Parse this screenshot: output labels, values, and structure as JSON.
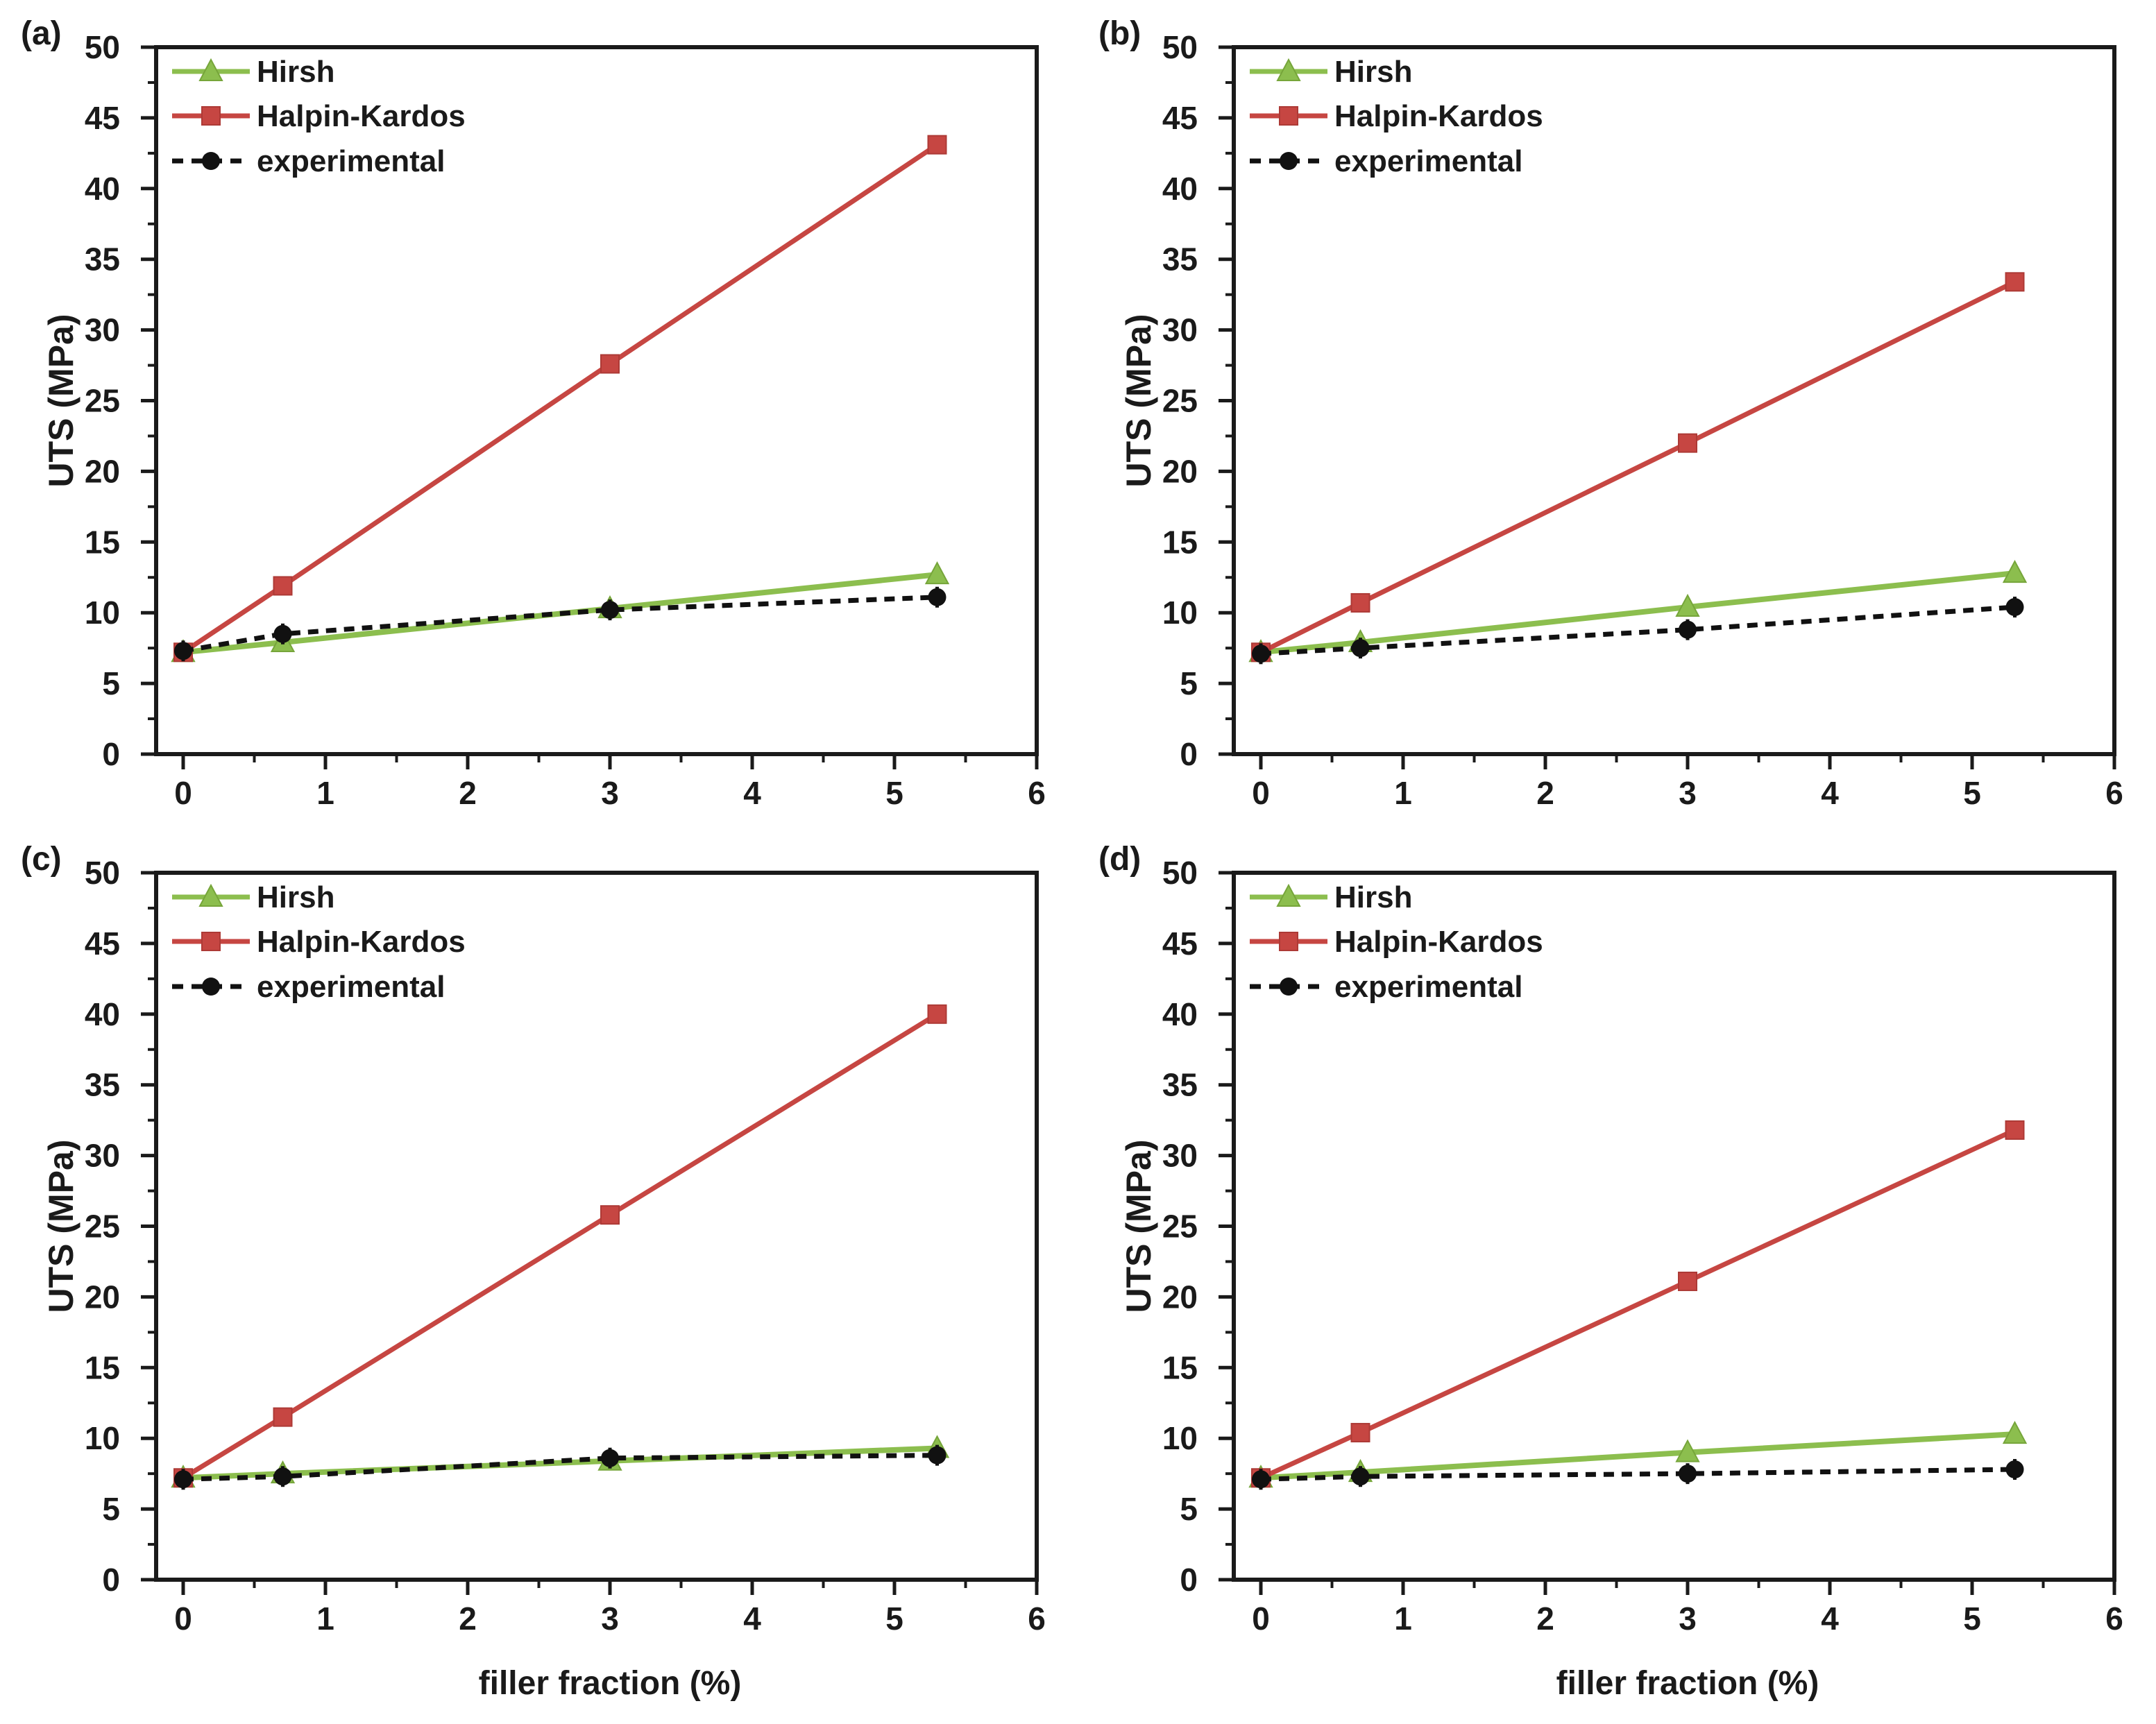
{
  "figure": {
    "background": "#ffffff",
    "axis_color": "#1a1a1a",
    "text_color": "#1a1a1a",
    "x_axis": {
      "label": "filler fraction (%)",
      "min": 0,
      "max": 6,
      "major_ticks": [
        0,
        1,
        2,
        3,
        4,
        5,
        6
      ],
      "minor_tick_step": 0.5
    },
    "y_axis": {
      "label": "UTS (MPa)",
      "min": 0,
      "max": 50,
      "major_ticks": [
        0,
        5,
        10,
        15,
        20,
        25,
        30,
        35,
        40,
        45,
        50
      ],
      "minor_tick_step": 2.5
    },
    "legend": {
      "position": "top-left",
      "entries": [
        {
          "label": "Hirsh",
          "color": "#8cbe4e",
          "marker": "triangle",
          "line_style": "solid",
          "marker_edge": "#76a53a"
        },
        {
          "label": "Halpin-Kardos",
          "color": "#c64642",
          "marker": "square",
          "line_style": "solid",
          "marker_edge": "#ad3a36"
        },
        {
          "label": "experimental",
          "color": "#111111",
          "marker": "circle",
          "line_style": "dashed",
          "marker_edge": "#111111"
        }
      ]
    }
  },
  "chart_data": [
    {
      "type": "line",
      "panel_label": "(a)",
      "xlabel": "",
      "ylabel": "UTS (MPa)",
      "xlim": [
        0,
        6
      ],
      "ylim": [
        0,
        50
      ],
      "grid": false,
      "legend_position": "top-left",
      "x": [
        0,
        0.7,
        3,
        5.3
      ],
      "series": [
        {
          "name": "Hirsh",
          "values": [
            7.2,
            7.9,
            10.3,
            12.7
          ]
        },
        {
          "name": "Halpin-Kardos",
          "values": [
            7.2,
            11.9,
            27.6,
            43.1
          ]
        },
        {
          "name": "experimental",
          "values": [
            7.3,
            8.5,
            10.2,
            11.1
          ]
        }
      ]
    },
    {
      "type": "line",
      "panel_label": "(b)",
      "xlabel": "",
      "ylabel": "UTS (MPa)",
      "xlim": [
        0,
        6
      ],
      "ylim": [
        0,
        50
      ],
      "grid": false,
      "legend_position": "top-left",
      "x": [
        0,
        0.7,
        3,
        5.3
      ],
      "series": [
        {
          "name": "Hirsh",
          "values": [
            7.2,
            7.9,
            10.4,
            12.8
          ]
        },
        {
          "name": "Halpin-Kardos",
          "values": [
            7.2,
            10.7,
            22.0,
            33.4
          ]
        },
        {
          "name": "experimental",
          "values": [
            7.1,
            7.5,
            8.8,
            10.4
          ]
        }
      ]
    },
    {
      "type": "line",
      "panel_label": "(c)",
      "xlabel": "filler fraction (%)",
      "ylabel": "UTS (MPa)",
      "xlim": [
        0,
        6
      ],
      "ylim": [
        0,
        50
      ],
      "grid": false,
      "legend_position": "top-left",
      "x": [
        0,
        0.7,
        3,
        5.3
      ],
      "series": [
        {
          "name": "Hirsh",
          "values": [
            7.2,
            7.5,
            8.4,
            9.3
          ]
        },
        {
          "name": "Halpin-Kardos",
          "values": [
            7.2,
            11.5,
            25.8,
            40.0
          ]
        },
        {
          "name": "experimental",
          "values": [
            7.1,
            7.3,
            8.6,
            8.8
          ]
        }
      ]
    },
    {
      "type": "line",
      "panel_label": "(d)",
      "xlabel": "filler fraction (%)",
      "ylabel": "UTS (MPa)",
      "xlim": [
        0,
        6
      ],
      "ylim": [
        0,
        50
      ],
      "grid": false,
      "legend_position": "top-left",
      "x": [
        0,
        0.7,
        3,
        5.3
      ],
      "series": [
        {
          "name": "Hirsh",
          "values": [
            7.2,
            7.6,
            9.0,
            10.3
          ]
        },
        {
          "name": "Halpin-Kardos",
          "values": [
            7.2,
            10.4,
            21.1,
            31.8
          ]
        },
        {
          "name": "experimental",
          "values": [
            7.1,
            7.3,
            7.5,
            7.8
          ]
        }
      ]
    }
  ]
}
